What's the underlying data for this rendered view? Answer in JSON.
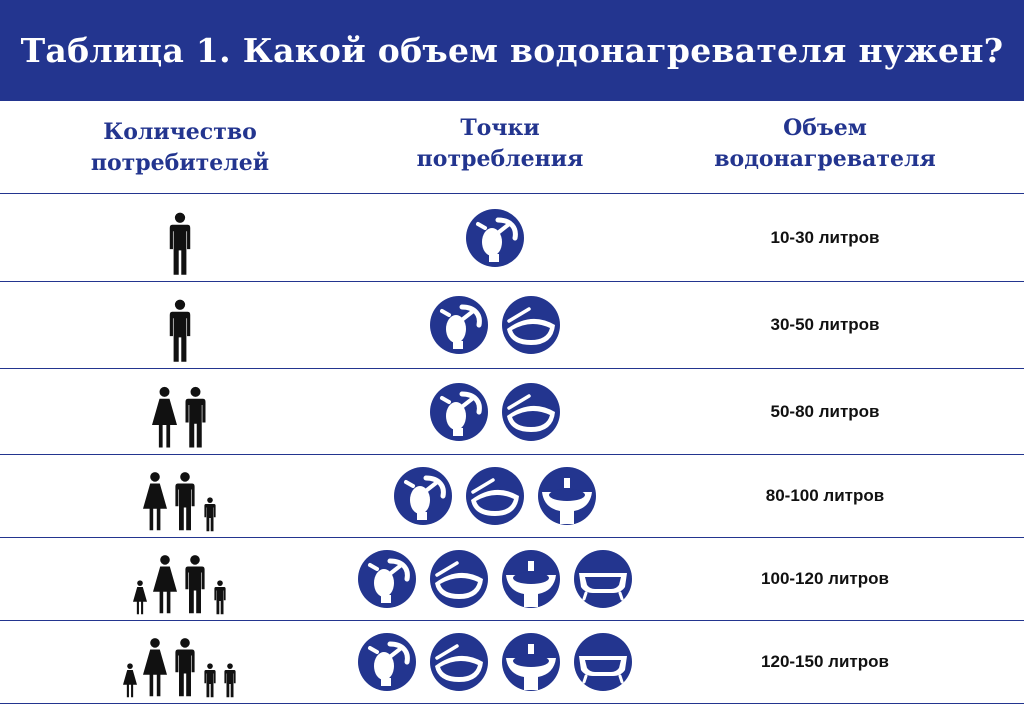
{
  "title": "Таблица 1. Какой объем водонагревателя нужен?",
  "colors": {
    "brand": "#23358f",
    "text": "#111111",
    "background": "#ffffff"
  },
  "headers": {
    "consumers": [
      "Количество",
      "потребителей"
    ],
    "points": [
      "Точки",
      "потребления"
    ],
    "volume": [
      "Объем",
      "водонагревателя"
    ]
  },
  "rows": [
    {
      "people": [
        "man-icon"
      ],
      "points": [
        "faucet-icon"
      ],
      "volume": "10-30 литров"
    },
    {
      "people": [
        "man-icon"
      ],
      "points": [
        "faucet-icon",
        "shower-icon"
      ],
      "volume": "30-50 литров"
    },
    {
      "people": [
        "woman-icon",
        "man-icon"
      ],
      "points": [
        "faucet-icon",
        "shower-icon"
      ],
      "volume": "50-80 литров"
    },
    {
      "people": [
        "woman-icon",
        "man-icon",
        "boy-icon"
      ],
      "points": [
        "faucet-icon",
        "shower-icon",
        "sink-icon"
      ],
      "volume": "80-100 литров"
    },
    {
      "people": [
        "girl-icon",
        "woman-icon",
        "man-icon",
        "boy-icon"
      ],
      "points": [
        "faucet-icon",
        "shower-icon",
        "sink-icon",
        "bathtub-icon"
      ],
      "volume": "100-120 литров"
    },
    {
      "people": [
        "girl-icon",
        "woman-icon",
        "man-icon",
        "boy-icon",
        "boy-icon"
      ],
      "points": [
        "faucet-icon",
        "shower-icon",
        "sink-icon",
        "bathtub-icon"
      ],
      "volume": "120-150 литров"
    }
  ]
}
